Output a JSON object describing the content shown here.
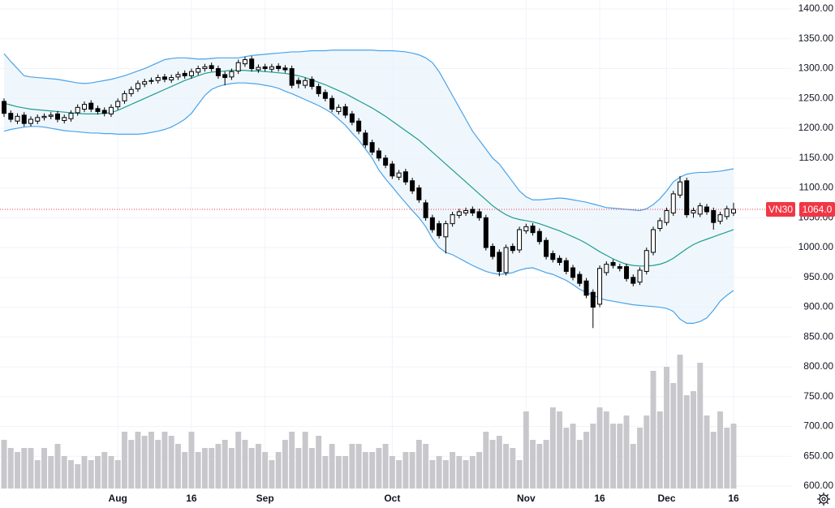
{
  "chart_data": {
    "type": "candlestick",
    "categories": [
      null,
      null,
      null,
      null,
      null,
      null,
      null,
      null,
      null,
      null,
      null,
      null,
      null,
      null,
      null,
      null,
      null,
      "Aug",
      null,
      null,
      null,
      null,
      null,
      null,
      null,
      null,
      null,
      null,
      "16",
      null,
      null,
      null,
      null,
      null,
      null,
      null,
      null,
      null,
      null,
      "Sep",
      null,
      null,
      null,
      null,
      null,
      null,
      null,
      null,
      null,
      null,
      null,
      null,
      null,
      null,
      null,
      null,
      null,
      null,
      "Oct",
      null,
      null,
      null,
      null,
      null,
      null,
      null,
      null,
      null,
      null,
      null,
      null,
      null,
      null,
      null,
      null,
      null,
      null,
      null,
      "Nov",
      null,
      null,
      null,
      null,
      null,
      null,
      null,
      null,
      null,
      null,
      "16",
      null,
      null,
      null,
      null,
      null,
      null,
      null,
      null,
      null,
      "Dec",
      null,
      null,
      null,
      null,
      null,
      null,
      null,
      null,
      null,
      "16"
    ],
    "ohlc": {
      "up_color": "#ffffff",
      "down_color": "#000000",
      "edge_color": "#000000",
      "open": [
        1245,
        1225,
        1212,
        1222,
        1208,
        1212,
        1218,
        1220,
        1224,
        1213,
        1216,
        1226,
        1232,
        1242,
        1233,
        1230,
        1224,
        1236,
        1246,
        1258,
        1266,
        1274,
        1279,
        1280,
        1286,
        1281,
        1286,
        1292,
        1288,
        1294,
        1300,
        1305,
        1300,
        1290,
        1286,
        1296,
        1308,
        1316,
        1298,
        1303,
        1299,
        1304,
        1301,
        1300,
        1280,
        1272,
        1282,
        1270,
        1260,
        1250,
        1228,
        1236,
        1224,
        1212,
        1192,
        1176,
        1162,
        1150,
        1140,
        1118,
        1127,
        1112,
        1100,
        1075,
        1050,
        1040,
        1018,
        1040,
        1054,
        1058,
        1064,
        1060,
        1050,
        1002,
        992,
        958,
        1002,
        996,
        1028,
        1036,
        1027,
        1012,
        990,
        982,
        978,
        966,
        955,
        944,
        925,
        905,
        958,
        975,
        968,
        968,
        950,
        942,
        960,
        992,
        1032,
        1042,
        1058,
        1088,
        1112,
        1058,
        1056,
        1068,
        1062,
        1044,
        1052,
        1058
      ],
      "high": [
        1250,
        1230,
        1225,
        1227,
        1220,
        1223,
        1225,
        1227,
        1229,
        1223,
        1230,
        1240,
        1245,
        1247,
        1238,
        1235,
        1240,
        1250,
        1263,
        1270,
        1280,
        1283,
        1285,
        1290,
        1291,
        1290,
        1295,
        1297,
        1300,
        1305,
        1308,
        1310,
        1305,
        1295,
        1300,
        1315,
        1320,
        1321,
        1307,
        1308,
        1308,
        1309,
        1306,
        1305,
        1285,
        1285,
        1287,
        1275,
        1265,
        1255,
        1240,
        1241,
        1229,
        1217,
        1197,
        1181,
        1167,
        1155,
        1145,
        1130,
        1132,
        1117,
        1105,
        1080,
        1055,
        1045,
        1045,
        1060,
        1065,
        1067,
        1069,
        1065,
        1055,
        1007,
        997,
        1005,
        1007,
        1035,
        1040,
        1041,
        1032,
        1017,
        995,
        987,
        983,
        971,
        960,
        949,
        930,
        970,
        977,
        980,
        973,
        973,
        955,
        967,
        1000,
        1035,
        1050,
        1067,
        1095,
        1120,
        1117,
        1067,
        1075,
        1073,
        1067,
        1060,
        1070,
        1075
      ],
      "low": [
        1219,
        1210,
        1207,
        1203,
        1203,
        1207,
        1213,
        1215,
        1210,
        1208,
        1211,
        1221,
        1227,
        1227,
        1223,
        1220,
        1219,
        1231,
        1241,
        1253,
        1261,
        1269,
        1274,
        1275,
        1277,
        1276,
        1281,
        1283,
        1283,
        1289,
        1295,
        1295,
        1283,
        1272,
        1281,
        1291,
        1303,
        1295,
        1293,
        1295,
        1294,
        1295,
        1293,
        1267,
        1267,
        1267,
        1265,
        1253,
        1245,
        1227,
        1223,
        1217,
        1205,
        1190,
        1167,
        1155,
        1145,
        1133,
        1115,
        1113,
        1105,
        1090,
        1075,
        1045,
        1025,
        1015,
        990,
        1035,
        1049,
        1053,
        1053,
        1045,
        995,
        980,
        952,
        953,
        990,
        991,
        1023,
        1020,
        1005,
        980,
        975,
        970,
        955,
        945,
        935,
        915,
        865,
        900,
        953,
        965,
        960,
        943,
        935,
        937,
        955,
        987,
        1027,
        1037,
        1053,
        1083,
        1050,
        1050,
        1051,
        1055,
        1030,
        1039,
        1047,
        1053
      ],
      "close": [
        1225,
        1215,
        1220,
        1208,
        1215,
        1218,
        1220,
        1222,
        1215,
        1218,
        1225,
        1235,
        1240,
        1232,
        1228,
        1225,
        1235,
        1245,
        1258,
        1265,
        1275,
        1278,
        1280,
        1285,
        1282,
        1285,
        1290,
        1288,
        1295,
        1300,
        1303,
        1300,
        1288,
        1285,
        1295,
        1310,
        1315,
        1300,
        1302,
        1300,
        1303,
        1300,
        1298,
        1272,
        1275,
        1280,
        1270,
        1258,
        1250,
        1232,
        1235,
        1222,
        1210,
        1195,
        1172,
        1160,
        1150,
        1138,
        1120,
        1125,
        1110,
        1095,
        1080,
        1050,
        1030,
        1020,
        1040,
        1055,
        1060,
        1062,
        1058,
        1050,
        1000,
        985,
        960,
        1000,
        995,
        1030,
        1035,
        1025,
        1010,
        985,
        980,
        975,
        960,
        950,
        940,
        920,
        900,
        965,
        972,
        970,
        965,
        948,
        940,
        962,
        995,
        1030,
        1045,
        1062,
        1090,
        1110,
        1055,
        1062,
        1070,
        1060,
        1042,
        1055,
        1065,
        1064
      ]
    },
    "bands": {
      "edge_color": "#4aa3e8",
      "middle_color": "#1f9c8c",
      "fill": "#e9f4fc",
      "upper": [
        1325,
        1312,
        1300,
        1288,
        1286,
        1285,
        1284,
        1283,
        1282,
        1280,
        1278,
        1276,
        1275,
        1276,
        1278,
        1280,
        1282,
        1285,
        1288,
        1292,
        1296,
        1300,
        1305,
        1310,
        1315,
        1317,
        1318,
        1318,
        1317,
        1316,
        1316,
        1317,
        1318,
        1318,
        1318,
        1318,
        1320,
        1322,
        1323,
        1324,
        1325,
        1326,
        1327,
        1328,
        1328,
        1329,
        1330,
        1330,
        1330,
        1331,
        1331,
        1331,
        1331,
        1331,
        1331,
        1331,
        1330,
        1330,
        1330,
        1329,
        1328,
        1326,
        1323,
        1318,
        1310,
        1295,
        1275,
        1255,
        1235,
        1215,
        1195,
        1180,
        1165,
        1150,
        1140,
        1125,
        1110,
        1095,
        1085,
        1080,
        1080,
        1081,
        1082,
        1083,
        1082,
        1080,
        1078,
        1076,
        1073,
        1070,
        1067,
        1066,
        1065,
        1064,
        1063,
        1062,
        1065,
        1072,
        1082,
        1095,
        1110,
        1118,
        1123,
        1125,
        1126,
        1126,
        1127,
        1128,
        1130,
        1132
      ],
      "middle": [
        1242,
        1239,
        1236,
        1234,
        1232,
        1231,
        1230,
        1229,
        1228,
        1227,
        1226,
        1225,
        1224,
        1224,
        1224,
        1225,
        1226,
        1230,
        1235,
        1240,
        1245,
        1250,
        1255,
        1260,
        1265,
        1270,
        1275,
        1280,
        1284,
        1288,
        1292,
        1294,
        1295,
        1296,
        1297,
        1297,
        1297,
        1296,
        1296,
        1295,
        1294,
        1293,
        1292,
        1290,
        1288,
        1285,
        1281,
        1277,
        1273,
        1268,
        1263,
        1258,
        1252,
        1246,
        1240,
        1234,
        1227,
        1220,
        1212,
        1204,
        1196,
        1188,
        1180,
        1170,
        1160,
        1150,
        1140,
        1130,
        1120,
        1110,
        1100,
        1090,
        1080,
        1070,
        1062,
        1055,
        1050,
        1047,
        1045,
        1043,
        1040,
        1036,
        1032,
        1028,
        1023,
        1018,
        1013,
        1007,
        1000,
        993,
        987,
        981,
        976,
        972,
        970,
        969,
        969,
        970,
        972,
        976,
        982,
        990,
        998,
        1005,
        1010,
        1014,
        1018,
        1022,
        1026,
        1030
      ],
      "lower": [
        1195,
        1198,
        1200,
        1202,
        1203,
        1203,
        1202,
        1200,
        1198,
        1196,
        1195,
        1194,
        1193,
        1192,
        1192,
        1191,
        1191,
        1190,
        1190,
        1190,
        1190,
        1191,
        1193,
        1195,
        1198,
        1202,
        1208,
        1215,
        1225,
        1240,
        1255,
        1265,
        1270,
        1273,
        1275,
        1276,
        1276,
        1275,
        1274,
        1272,
        1270,
        1267,
        1262,
        1258,
        1253,
        1248,
        1243,
        1238,
        1232,
        1225,
        1215,
        1205,
        1192,
        1180,
        1165,
        1150,
        1130,
        1115,
        1102,
        1088,
        1075,
        1062,
        1050,
        1035,
        1015,
        1000,
        992,
        988,
        982,
        976,
        970,
        965,
        960,
        957,
        955,
        956,
        958,
        962,
        965,
        966,
        962,
        958,
        955,
        950,
        945,
        938,
        930,
        925,
        920,
        915,
        912,
        910,
        908,
        906,
        904,
        903,
        902,
        901,
        900,
        898,
        893,
        880,
        873,
        873,
        876,
        882,
        895,
        910,
        920,
        928
      ]
    },
    "volume": {
      "color": "#c8c8cc",
      "vlim": [
        0,
        200
      ],
      "values": [
        60,
        50,
        45,
        50,
        50,
        35,
        50,
        40,
        55,
        40,
        35,
        30,
        40,
        35,
        40,
        45,
        40,
        35,
        70,
        60,
        70,
        65,
        70,
        60,
        70,
        65,
        55,
        45,
        70,
        45,
        50,
        50,
        55,
        60,
        50,
        70,
        60,
        50,
        55,
        45,
        35,
        45,
        60,
        70,
        50,
        70,
        50,
        65,
        40,
        55,
        40,
        40,
        55,
        55,
        45,
        45,
        50,
        55,
        40,
        35,
        45,
        45,
        60,
        55,
        35,
        40,
        35,
        45,
        40,
        35,
        40,
        45,
        70,
        60,
        65,
        55,
        50,
        35,
        95,
        60,
        55,
        60,
        100,
        95,
        75,
        80,
        60,
        70,
        80,
        100,
        95,
        80,
        80,
        90,
        55,
        75,
        90,
        145,
        95,
        150,
        130,
        165,
        115,
        120,
        155,
        90,
        70,
        95,
        75,
        80
      ]
    },
    "price_line": {
      "symbol": "VN30",
      "value": 1064,
      "label": "1064.0",
      "color": "#f23645"
    },
    "ylim": [
      596,
      1415
    ],
    "yticks": [
      {
        "value": 600,
        "label": "600.00"
      },
      {
        "value": 650,
        "label": "650.00"
      },
      {
        "value": 700,
        "label": "700.00"
      },
      {
        "value": 750,
        "label": "750.00"
      },
      {
        "value": 800,
        "label": "800.00"
      },
      {
        "value": 850,
        "label": "850.00"
      },
      {
        "value": 900,
        "label": "900.00"
      },
      {
        "value": 950,
        "label": "950.00"
      },
      {
        "value": 1000,
        "label": "1000.00"
      },
      {
        "value": 1050,
        "label": "1050.00"
      },
      {
        "value": 1100,
        "label": "1100.00"
      },
      {
        "value": 1150,
        "label": "1150.00"
      },
      {
        "value": 1200,
        "label": "1200.00"
      },
      {
        "value": 1250,
        "label": "1250.00"
      },
      {
        "value": 1300,
        "label": "1300.00"
      },
      {
        "value": 1350,
        "label": "1350.00"
      },
      {
        "value": 1400,
        "label": "1400.00"
      }
    ],
    "grid": true
  }
}
